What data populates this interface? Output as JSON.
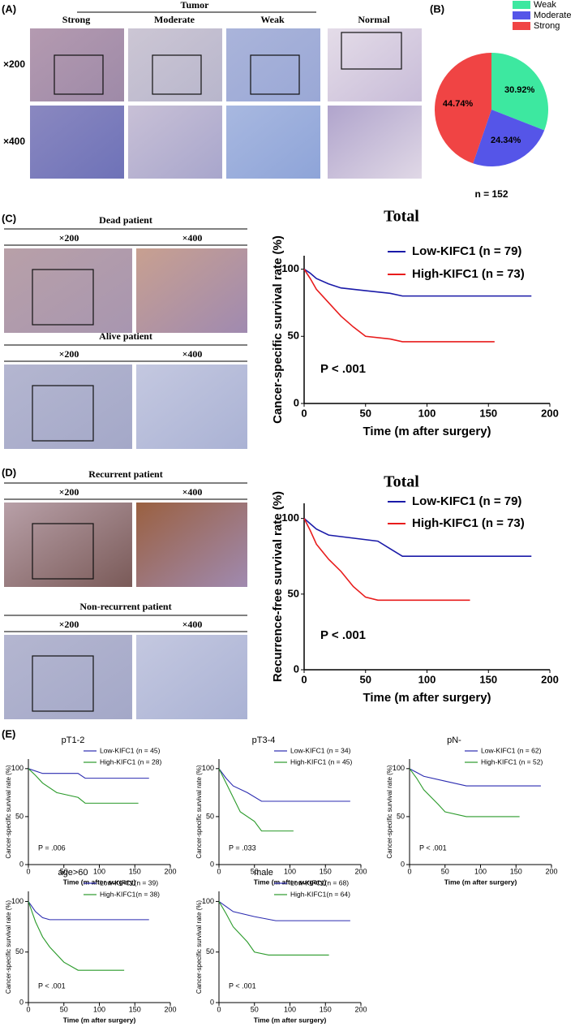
{
  "panel_a": {
    "label": "(A)",
    "group": "Tumor",
    "columns": [
      "Strong",
      "Moderate",
      "Weak",
      "Normal"
    ],
    "rows": [
      "×200",
      "×400"
    ]
  },
  "panel_b": {
    "label": "(B)"
  },
  "panel_c": {
    "label": "(C)",
    "blocks": [
      {
        "title": "Dead patient",
        "magnifications": [
          "×200",
          "×400"
        ]
      },
      {
        "title": "Alive patient",
        "magnifications": [
          "×200",
          "×400"
        ]
      }
    ]
  },
  "panel_d": {
    "label": "(D)",
    "blocks": [
      {
        "title": "Recurrent patient",
        "magnifications": [
          "×200",
          "×400"
        ]
      },
      {
        "title": "Non-recurrent patient",
        "magnifications": [
          "×200",
          "×400"
        ]
      }
    ]
  },
  "panel_e": {
    "label": "(E)"
  },
  "chart_data": [
    {
      "type": "pie",
      "categories": [
        "Weak",
        "Moderate",
        "Strong"
      ],
      "values": [
        30.92,
        24.34,
        44.74
      ],
      "value_labels": [
        "30.92%",
        "24.34%",
        "44.74%"
      ],
      "colors": [
        "#3de8a0",
        "#5555e8",
        "#f04444"
      ],
      "annotation": "n = 152",
      "legend": "top-right"
    },
    {
      "type": "line",
      "title": "Total",
      "xlabel": "Time (m after surgery)",
      "ylabel": "Cancer-specific survival rate (%)",
      "annotation": "P < .001",
      "xlim": [
        0,
        200
      ],
      "ylim": [
        0,
        110
      ],
      "xticks": [
        0,
        50,
        100,
        150,
        200
      ],
      "yticks": [
        0,
        50,
        100
      ],
      "series": [
        {
          "name": "Low-KIFC1 (n = 79)",
          "color": "#1a1aa8",
          "x": [
            0,
            5,
            10,
            20,
            30,
            50,
            70,
            80,
            185
          ],
          "values": [
            100,
            97,
            93,
            89,
            86,
            84,
            82,
            80,
            80
          ]
        },
        {
          "name": "High-KIFC1 (n = 73)",
          "color": "#e81c1c",
          "x": [
            0,
            5,
            10,
            20,
            30,
            40,
            50,
            70,
            80,
            155
          ],
          "values": [
            100,
            93,
            85,
            75,
            65,
            57,
            50,
            48,
            46,
            46
          ]
        }
      ]
    },
    {
      "type": "line",
      "title": "Total",
      "xlabel": "Time (m after surgery)",
      "ylabel": "Recurrence-free survival rate (%)",
      "annotation": "P < .001",
      "xlim": [
        0,
        200
      ],
      "ylim": [
        0,
        110
      ],
      "xticks": [
        0,
        50,
        100,
        150,
        200
      ],
      "yticks": [
        0,
        50,
        100
      ],
      "series": [
        {
          "name": "Low-KIFC1 (n = 79)",
          "color": "#1a1aa8",
          "x": [
            0,
            10,
            20,
            40,
            60,
            70,
            80,
            185
          ],
          "values": [
            100,
            93,
            89,
            87,
            85,
            80,
            75,
            75
          ]
        },
        {
          "name": "High-KIFC1 (n = 73)",
          "color": "#e81c1c",
          "x": [
            0,
            5,
            10,
            20,
            30,
            40,
            50,
            60,
            135
          ],
          "values": [
            100,
            92,
            83,
            73,
            65,
            55,
            48,
            46,
            46
          ]
        }
      ]
    },
    {
      "type": "line",
      "title": "pT1-2",
      "xlabel": "Time (m after surgery)",
      "ylabel": "Cancer-specific survival rate (%)",
      "annotation": "P = .006",
      "xlim": [
        0,
        200
      ],
      "ylim": [
        0,
        110
      ],
      "xticks": [
        0,
        50,
        100,
        150,
        200
      ],
      "yticks": [
        0,
        50,
        100
      ],
      "series": [
        {
          "name": "Low-KIFC1 (n = 45)",
          "color": "#2b2bb0",
          "x": [
            0,
            20,
            70,
            80,
            170
          ],
          "values": [
            100,
            95,
            95,
            90,
            90
          ]
        },
        {
          "name": "High-KIFC1 (n = 28)",
          "color": "#2a9a2a",
          "x": [
            0,
            10,
            20,
            40,
            70,
            80,
            155
          ],
          "values": [
            100,
            93,
            85,
            75,
            70,
            64,
            64
          ]
        }
      ]
    },
    {
      "type": "line",
      "title": "pT3-4",
      "xlabel": "Time (m after surgery)",
      "ylabel": "Cancer-specific survival rate (%)",
      "annotation": "P = .033",
      "xlim": [
        0,
        200
      ],
      "ylim": [
        0,
        110
      ],
      "xticks": [
        0,
        50,
        100,
        150,
        200
      ],
      "yticks": [
        0,
        50,
        100
      ],
      "series": [
        {
          "name": "Low-KIFC1 (n = 34)",
          "color": "#2b2bb0",
          "x": [
            0,
            10,
            20,
            40,
            60,
            185
          ],
          "values": [
            100,
            90,
            82,
            75,
            66,
            66
          ]
        },
        {
          "name": "High-KIFC1 (n = 45)",
          "color": "#2a9a2a",
          "x": [
            0,
            10,
            20,
            30,
            50,
            60,
            105
          ],
          "values": [
            100,
            85,
            70,
            55,
            45,
            35,
            35
          ]
        }
      ]
    },
    {
      "type": "line",
      "title": "pN-",
      "xlabel": "Time (m after surgery)",
      "ylabel": "Cancer-specific survival rate (%)",
      "annotation": "P < .001",
      "xlim": [
        0,
        200
      ],
      "ylim": [
        0,
        110
      ],
      "xticks": [
        0,
        50,
        100,
        150,
        200
      ],
      "yticks": [
        0,
        50,
        100
      ],
      "series": [
        {
          "name": "Low-KIFC1 (n = 62)",
          "color": "#2b2bb0",
          "x": [
            0,
            10,
            20,
            50,
            80,
            185
          ],
          "values": [
            100,
            96,
            92,
            87,
            82,
            82
          ]
        },
        {
          "name": "High-KIFC1 (n = 52)",
          "color": "#2a9a2a",
          "x": [
            0,
            10,
            20,
            40,
            50,
            80,
            155
          ],
          "values": [
            100,
            90,
            78,
            63,
            55,
            50,
            50
          ]
        }
      ]
    },
    {
      "type": "line",
      "title": "age>60",
      "xlabel": "Time (m after surgery)",
      "ylabel": "Cancer-specific survival rate (%)",
      "annotation": "P < .001",
      "xlim": [
        0,
        200
      ],
      "ylim": [
        0,
        110
      ],
      "xticks": [
        0,
        50,
        100,
        150,
        200
      ],
      "yticks": [
        0,
        50,
        100
      ],
      "series": [
        {
          "name": "Low-KIFC1(n = 39)",
          "color": "#2b2bb0",
          "x": [
            0,
            10,
            20,
            30,
            170
          ],
          "values": [
            100,
            90,
            84,
            82,
            82
          ]
        },
        {
          "name": "High-KIFC1(n = 38)",
          "color": "#2a9a2a",
          "x": [
            0,
            5,
            10,
            20,
            30,
            50,
            70,
            135
          ],
          "values": [
            100,
            90,
            80,
            65,
            55,
            40,
            32,
            32
          ]
        }
      ]
    },
    {
      "type": "line",
      "title": "male",
      "xlabel": "Time (m after surgery)",
      "ylabel": "Cancer-specific survival rate (%)",
      "annotation": "P < .001",
      "xlim": [
        0,
        200
      ],
      "ylim": [
        0,
        110
      ],
      "xticks": [
        0,
        50,
        100,
        150,
        200
      ],
      "yticks": [
        0,
        50,
        100
      ],
      "series": [
        {
          "name": "Low-KIFC1(n = 68)",
          "color": "#2b2bb0",
          "x": [
            0,
            10,
            20,
            50,
            80,
            185
          ],
          "values": [
            100,
            95,
            90,
            85,
            81,
            81
          ]
        },
        {
          "name": "High-KIFC1(n = 64)",
          "color": "#2a9a2a",
          "x": [
            0,
            10,
            20,
            40,
            50,
            70,
            155
          ],
          "values": [
            100,
            88,
            75,
            60,
            50,
            47,
            47
          ]
        }
      ]
    }
  ]
}
